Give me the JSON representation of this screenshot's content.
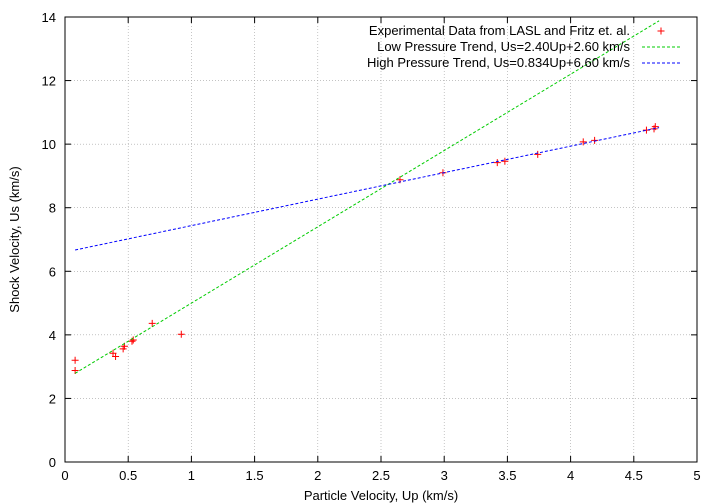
{
  "chart_data": {
    "type": "scatter",
    "xlabel": "Particle Velocity, Up (km/s)",
    "ylabel": "Shock Velocity, Us (km/s)",
    "xlim": [
      0,
      5
    ],
    "ylim": [
      0,
      14
    ],
    "x_ticks": [
      0,
      0.5,
      1,
      1.5,
      2,
      2.5,
      3,
      3.5,
      4,
      4.5,
      5
    ],
    "x_tick_labels": [
      "0",
      "0.5",
      "1",
      "1.5",
      "2",
      "2.5",
      "3",
      "3.5",
      "4",
      "4.5",
      "5"
    ],
    "y_ticks": [
      0,
      2,
      4,
      6,
      8,
      10,
      12,
      14
    ],
    "y_tick_labels": [
      "0",
      "2",
      "4",
      "6",
      "8",
      "10",
      "12",
      "14"
    ],
    "grid": true,
    "legend_position": "top-right",
    "series": [
      {
        "name": "Experimental Data from LASL and Fritz et. al.",
        "kind": "points",
        "color": "#ff0000",
        "points": [
          [
            0.08,
            2.88
          ],
          [
            0.08,
            3.2
          ],
          [
            0.38,
            3.42
          ],
          [
            0.4,
            3.32
          ],
          [
            0.46,
            3.56
          ],
          [
            0.47,
            3.64
          ],
          [
            0.53,
            3.8
          ],
          [
            0.54,
            3.84
          ],
          [
            0.69,
            4.36
          ],
          [
            0.92,
            4.02
          ],
          [
            2.65,
            8.88
          ],
          [
            2.99,
            9.1
          ],
          [
            3.42,
            9.42
          ],
          [
            3.48,
            9.46
          ],
          [
            3.74,
            9.68
          ],
          [
            4.1,
            10.07
          ],
          [
            4.19,
            10.12
          ],
          [
            4.6,
            10.44
          ],
          [
            4.66,
            10.48
          ],
          [
            4.67,
            10.55
          ]
        ]
      },
      {
        "name": "Low Pressure Trend, Us=2.40Up+2.60 km/s",
        "kind": "line",
        "color": "#00cc00",
        "x": [
          0.08,
          4.7
        ],
        "y": [
          2.79,
          13.88
        ]
      },
      {
        "name": "High Pressure Trend, Us=0.834Up+6.60 km/s",
        "kind": "line",
        "color": "#0000ff",
        "x": [
          0.08,
          4.7
        ],
        "y": [
          6.67,
          10.52
        ]
      }
    ]
  }
}
